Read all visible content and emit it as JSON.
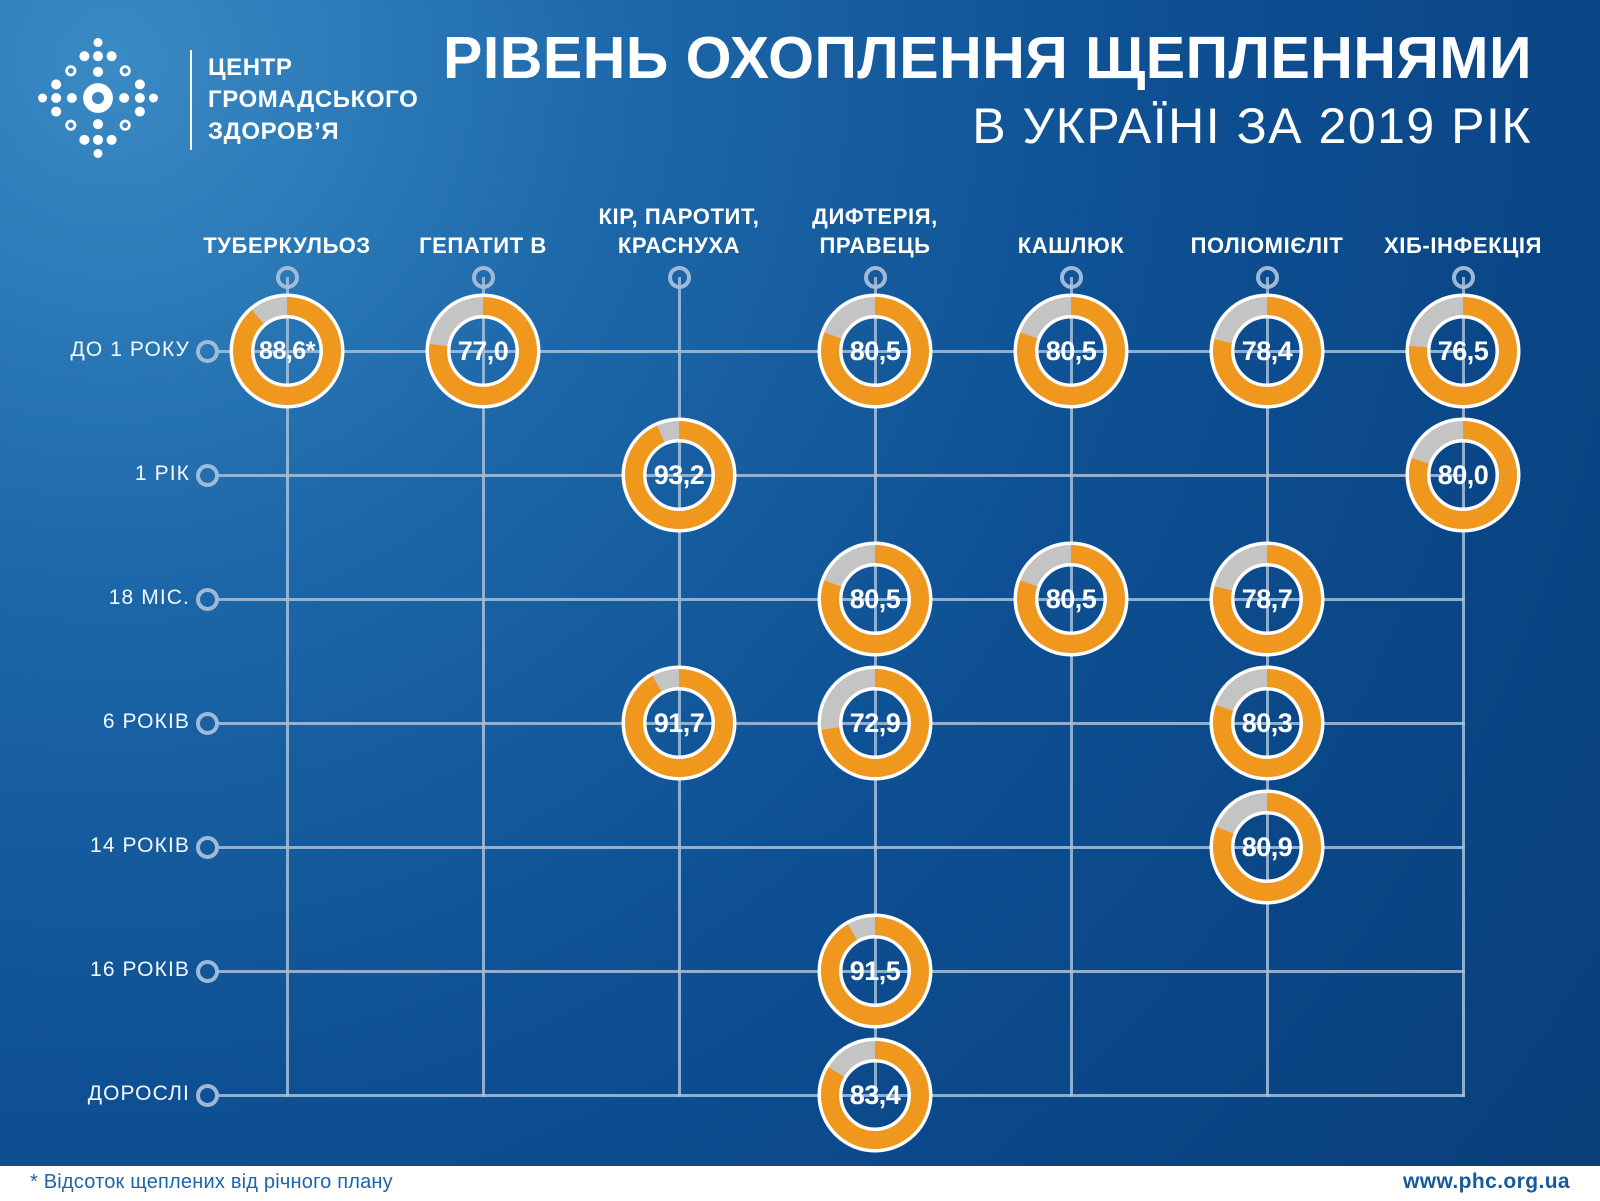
{
  "header": {
    "logo_text": "ЦЕНТР\nГРОМАДСЬКОГО\nЗДОРОВ’Я",
    "title": "РІВЕНЬ ОХОПЛЕННЯ ЩЕПЛЕННЯМИ",
    "subtitle": "В УКРАЇНІ ЗА 2019 РІК"
  },
  "chart_data": {
    "type": "pie",
    "variant": "donut-matrix",
    "title": "РІВЕНЬ ОХОПЛЕННЯ ЩЕПЛЕННЯМИ",
    "subtitle": "В УКРАЇНІ ЗА 2019 РІК",
    "unit": "percent",
    "columns": [
      "ТУБЕРКУЛЬОЗ",
      "ГЕПАТИТ В",
      "КІР, ПАРОТИТ,\nКРАСНУХА",
      "ДИФТЕРІЯ,\nПРАВЕЦЬ",
      "КАШЛЮК",
      "ПОЛІОМІЄЛІТ",
      "ХІБ-ІНФЕКЦІЯ"
    ],
    "rows": [
      "ДО 1 РОКУ",
      "1 РІК",
      "18 МІС.",
      "6 РОКІВ",
      "14 РОКІВ",
      "16 РОКІВ",
      "ДОРОСЛІ"
    ],
    "cells": [
      {
        "col": 0,
        "row": 0,
        "value": 88.6,
        "label": "88,6*"
      },
      {
        "col": 1,
        "row": 0,
        "value": 77.0,
        "label": "77,0"
      },
      {
        "col": 3,
        "row": 0,
        "value": 80.5,
        "label": "80,5"
      },
      {
        "col": 4,
        "row": 0,
        "value": 80.5,
        "label": "80,5"
      },
      {
        "col": 5,
        "row": 0,
        "value": 78.4,
        "label": "78,4"
      },
      {
        "col": 6,
        "row": 0,
        "value": 76.5,
        "label": "76,5"
      },
      {
        "col": 2,
        "row": 1,
        "value": 93.2,
        "label": "93,2"
      },
      {
        "col": 6,
        "row": 1,
        "value": 80.0,
        "label": "80,0"
      },
      {
        "col": 3,
        "row": 2,
        "value": 80.5,
        "label": "80,5"
      },
      {
        "col": 4,
        "row": 2,
        "value": 80.5,
        "label": "80,5"
      },
      {
        "col": 5,
        "row": 2,
        "value": 78.7,
        "label": "78,7"
      },
      {
        "col": 2,
        "row": 3,
        "value": 91.7,
        "label": "91,7"
      },
      {
        "col": 3,
        "row": 3,
        "value": 72.9,
        "label": "72,9"
      },
      {
        "col": 5,
        "row": 3,
        "value": 80.3,
        "label": "80,3"
      },
      {
        "col": 5,
        "row": 4,
        "value": 80.9,
        "label": "80,9"
      },
      {
        "col": 3,
        "row": 5,
        "value": 91.5,
        "label": "91,5"
      },
      {
        "col": 3,
        "row": 6,
        "value": 83.4,
        "label": "83,4"
      }
    ],
    "colors": {
      "covered": "#F0981E",
      "remainder": "#C4C4C4",
      "ring_border": "#FFFFFF",
      "grid": "#A6BFDA"
    },
    "legend": "none",
    "grid": "on"
  },
  "footer": {
    "note": "* Відсоток щеплених від річного плану",
    "url": "www.phc.org.ua"
  }
}
